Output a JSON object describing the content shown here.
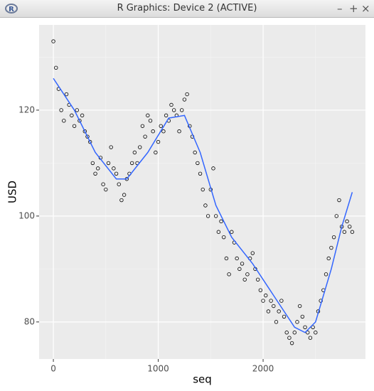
{
  "window": {
    "title": "R Graphics: Device 2 (ACTIVE)"
  },
  "chart_data": {
    "type": "scatter",
    "xlabel": "seq",
    "ylabel": "USD",
    "x": [
      0,
      25,
      50,
      75,
      100,
      125,
      150,
      175,
      200,
      225,
      250,
      275,
      300,
      325,
      350,
      375,
      400,
      425,
      450,
      475,
      500,
      525,
      550,
      575,
      600,
      625,
      650,
      675,
      700,
      725,
      750,
      775,
      800,
      825,
      850,
      875,
      900,
      925,
      950,
      975,
      1000,
      1025,
      1050,
      1075,
      1100,
      1125,
      1150,
      1175,
      1200,
      1225,
      1250,
      1275,
      1300,
      1325,
      1350,
      1375,
      1400,
      1425,
      1450,
      1475,
      1500,
      1525,
      1550,
      1575,
      1600,
      1625,
      1650,
      1675,
      1700,
      1725,
      1750,
      1775,
      1800,
      1825,
      1850,
      1875,
      1900,
      1925,
      1950,
      1975,
      2000,
      2025,
      2050,
      2075,
      2100,
      2125,
      2150,
      2175,
      2200,
      2225,
      2250,
      2275,
      2300,
      2325,
      2350,
      2375,
      2400,
      2425,
      2450,
      2475,
      2500,
      2525,
      2550,
      2575,
      2600,
      2625,
      2650,
      2675,
      2700,
      2725,
      2750,
      2775,
      2800,
      2825,
      2850
    ],
    "values": [
      133,
      128,
      124,
      120,
      118,
      123,
      121,
      119,
      117,
      120,
      118,
      119,
      116,
      115,
      114,
      110,
      108,
      109,
      111,
      106,
      105,
      110,
      113,
      109,
      108,
      106,
      103,
      104,
      107,
      108,
      110,
      112,
      110,
      113,
      117,
      115,
      119,
      118,
      116,
      112,
      114,
      117,
      116,
      119,
      118,
      121,
      120,
      119,
      116,
      120,
      122,
      123,
      117,
      115,
      112,
      110,
      108,
      105,
      102,
      100,
      105,
      109,
      100,
      97,
      99,
      96,
      92,
      89,
      97,
      95,
      92,
      90,
      91,
      88,
      89,
      92,
      93,
      90,
      88,
      86,
      84,
      85,
      82,
      84,
      83,
      80,
      82,
      84,
      81,
      78,
      77,
      76,
      78,
      80,
      83,
      81,
      79,
      78,
      77,
      79,
      78,
      82,
      84,
      86,
      89,
      92,
      94,
      96,
      100,
      103,
      98,
      97,
      99,
      98,
      97
    ],
    "point_color": "#000000",
    "trend": {
      "x": [
        0,
        200,
        400,
        600,
        700,
        900,
        1100,
        1250,
        1400,
        1550,
        1700,
        1900,
        2100,
        2300,
        2400,
        2500,
        2650,
        2750,
        2850
      ],
      "values": [
        126,
        120,
        112,
        107,
        107,
        112,
        118.5,
        119,
        112,
        102,
        96,
        91,
        85,
        79,
        78,
        80,
        90,
        98,
        104.5
      ],
      "color": "#3366ff"
    },
    "xlim": [
      -136,
      2976
    ],
    "ylim": [
      73,
      136.1
    ],
    "xticks": [
      0,
      1000,
      2000
    ],
    "yticks": [
      80,
      100,
      120
    ],
    "grid": true
  }
}
